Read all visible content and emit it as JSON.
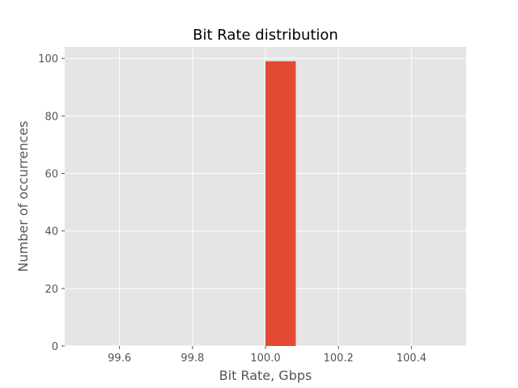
{
  "chart_data": {
    "type": "bar",
    "title": "Bit Rate distribution",
    "xlabel": "Bit Rate, Gbps",
    "ylabel": "Number of occurrences",
    "xlim": [
      99.45,
      100.55
    ],
    "ylim": [
      0,
      104
    ],
    "xticks": [
      "99.6",
      "99.8",
      "100.0",
      "100.2",
      "100.4"
    ],
    "yticks": [
      "0",
      "20",
      "40",
      "60",
      "80",
      "100"
    ],
    "bins": [
      {
        "x0": 100.0,
        "x1": 100.083,
        "value": 99
      }
    ],
    "grid": true,
    "colors": {
      "bar": "#E24A33",
      "plot_background": "#E5E5E5",
      "grid": "#FFFFFF"
    }
  }
}
